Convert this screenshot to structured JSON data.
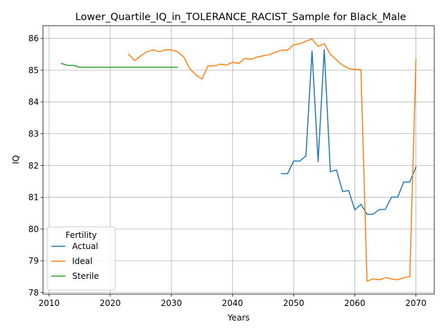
{
  "chart_data": {
    "type": "line",
    "title": "Lower_Quartile_IQ_in_TOLERANCE_RACIST_Sample for Black_Male",
    "xlabel": "Years",
    "ylabel": "IQ",
    "xlim": [
      2009,
      2073
    ],
    "ylim": [
      77.95,
      86.4
    ],
    "xticks": [
      2010,
      2020,
      2030,
      2040,
      2050,
      2060,
      2070
    ],
    "yticks": [
      78,
      79,
      80,
      81,
      82,
      83,
      84,
      85,
      86
    ],
    "grid": true,
    "legend": {
      "title": "Fertility",
      "placement": "lower-left"
    },
    "series": [
      {
        "name": "Actual",
        "color": "#1f77b4",
        "x": [
          2048,
          2049,
          2050,
          2051,
          2052,
          2053,
          2054,
          2055,
          2056,
          2057,
          2058,
          2059,
          2060,
          2061,
          2062,
          2063,
          2064,
          2065,
          2066,
          2067,
          2068,
          2069,
          2070
        ],
        "y": [
          81.74,
          81.74,
          82.14,
          82.14,
          82.3,
          85.6,
          82.12,
          85.65,
          81.8,
          81.86,
          81.18,
          81.21,
          80.6,
          80.78,
          80.46,
          80.47,
          80.61,
          80.62,
          81.0,
          81.0,
          81.48,
          81.48,
          81.95
        ]
      },
      {
        "name": "Ideal",
        "color": "#ff7f0e",
        "x": [
          2023,
          2024,
          2025,
          2026,
          2027,
          2028,
          2029,
          2030,
          2031,
          2032,
          2033,
          2034,
          2035,
          2036,
          2037,
          2038,
          2039,
          2040,
          2041,
          2042,
          2043,
          2044,
          2045,
          2046,
          2047,
          2048,
          2049,
          2050,
          2051,
          2052,
          2053,
          2054,
          2055,
          2056,
          2057,
          2058,
          2059,
          2060,
          2061,
          2062,
          2063,
          2064,
          2065,
          2066,
          2067,
          2068,
          2069,
          2070
        ],
        "y": [
          85.5,
          85.3,
          85.45,
          85.58,
          85.64,
          85.58,
          85.64,
          85.64,
          85.58,
          85.42,
          85.05,
          84.85,
          84.72,
          85.14,
          85.13,
          85.19,
          85.16,
          85.25,
          85.21,
          85.37,
          85.34,
          85.41,
          85.45,
          85.49,
          85.56,
          85.63,
          85.63,
          85.8,
          85.83,
          85.91,
          85.98,
          85.75,
          85.83,
          85.5,
          85.32,
          85.16,
          85.05,
          85.02,
          85.02,
          78.36,
          78.43,
          78.4,
          78.47,
          78.43,
          78.4,
          78.47,
          78.5,
          85.33
        ]
      },
      {
        "name": "Sterile",
        "color": "#2ca02c",
        "x": [
          2012,
          2013,
          2014,
          2015,
          2016,
          2017,
          2018,
          2019,
          2020,
          2021,
          2022,
          2023,
          2024,
          2025,
          2026,
          2027,
          2028,
          2029,
          2030,
          2031
        ],
        "y": [
          85.21,
          85.15,
          85.15,
          85.09,
          85.09,
          85.09,
          85.09,
          85.09,
          85.09,
          85.09,
          85.09,
          85.09,
          85.09,
          85.09,
          85.09,
          85.09,
          85.09,
          85.09,
          85.09,
          85.09
        ]
      }
    ]
  }
}
